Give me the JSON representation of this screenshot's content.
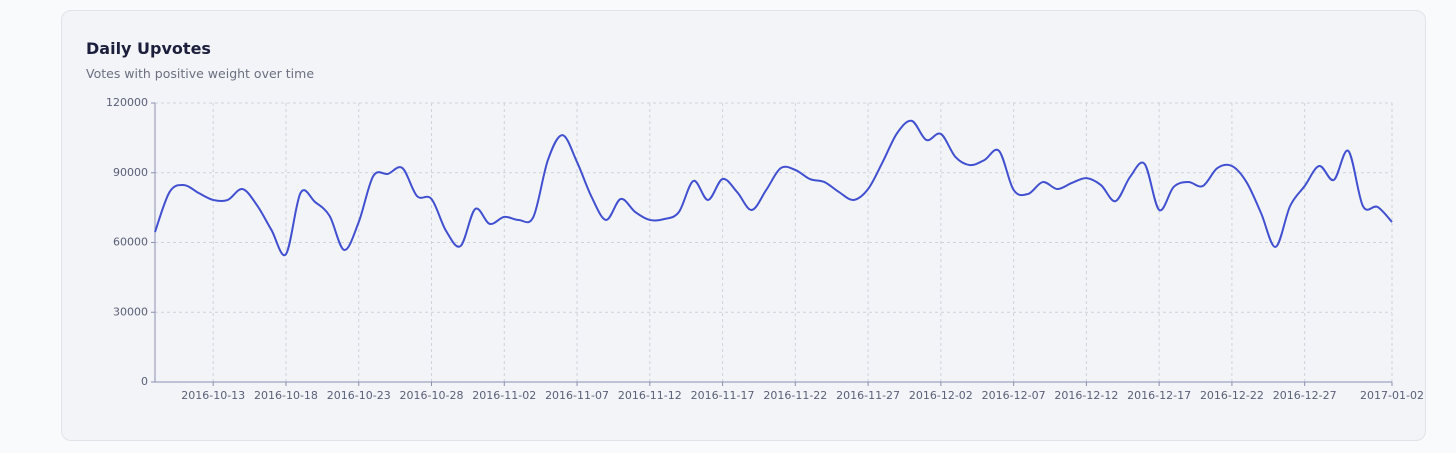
{
  "header": {
    "title": "Daily Upvotes",
    "subtitle": "Votes with positive weight over time"
  },
  "chart_data": {
    "type": "line",
    "grid": true,
    "x": [
      "2016-10-09",
      "2016-10-10",
      "2016-10-11",
      "2016-10-12",
      "2016-10-13",
      "2016-10-14",
      "2016-10-15",
      "2016-10-16",
      "2016-10-17",
      "2016-10-18",
      "2016-10-19",
      "2016-10-20",
      "2016-10-21",
      "2016-10-22",
      "2016-10-23",
      "2016-10-24",
      "2016-10-25",
      "2016-10-26",
      "2016-10-27",
      "2016-10-28",
      "2016-10-29",
      "2016-10-30",
      "2016-10-31",
      "2016-11-01",
      "2016-11-02",
      "2016-11-03",
      "2016-11-04",
      "2016-11-05",
      "2016-11-06",
      "2016-11-07",
      "2016-11-08",
      "2016-11-09",
      "2016-11-10",
      "2016-11-11",
      "2016-11-12",
      "2016-11-13",
      "2016-11-14",
      "2016-11-15",
      "2016-11-16",
      "2016-11-17",
      "2016-11-18",
      "2016-11-19",
      "2016-11-20",
      "2016-11-21",
      "2016-11-22",
      "2016-11-23",
      "2016-11-24",
      "2016-11-25",
      "2016-11-26",
      "2016-11-27",
      "2016-11-28",
      "2016-11-29",
      "2016-11-30",
      "2016-12-01",
      "2016-12-02",
      "2016-12-03",
      "2016-12-04",
      "2016-12-05",
      "2016-12-06",
      "2016-12-07",
      "2016-12-08",
      "2016-12-09",
      "2016-12-10",
      "2016-12-11",
      "2016-12-12",
      "2016-12-13",
      "2016-12-14",
      "2016-12-15",
      "2016-12-16",
      "2016-12-17",
      "2016-12-18",
      "2016-12-19",
      "2016-12-20",
      "2016-12-21",
      "2016-12-22",
      "2016-12-23",
      "2016-12-24",
      "2016-12-25",
      "2016-12-26",
      "2016-12-27",
      "2016-12-28",
      "2016-12-29",
      "2016-12-30",
      "2016-12-31",
      "2017-01-01",
      "2017-01-02"
    ],
    "series": [
      {
        "color": "#4150d0",
        "values": [
          64500,
          81700,
          84700,
          81300,
          78300,
          78300,
          83000,
          76100,
          65400,
          55000,
          81300,
          77400,
          71400,
          56800,
          68800,
          88600,
          89500,
          92000,
          80000,
          78700,
          65000,
          58500,
          74400,
          68000,
          71000,
          69700,
          71000,
          95500,
          106200,
          94600,
          79600,
          69700,
          78700,
          73100,
          69700,
          70100,
          73100,
          86500,
          78300,
          87300,
          81700,
          74000,
          82600,
          92000,
          91200,
          87300,
          86000,
          81700,
          78300,
          83000,
          94600,
          107100,
          112300,
          104100,
          106700,
          96800,
          93300,
          95500,
          99400,
          82600,
          80900,
          86000,
          83000,
          85600,
          87700,
          84700,
          77800,
          88200,
          93800,
          74000,
          83900,
          86000,
          84300,
          92000,
          92900,
          86000,
          72700,
          58100,
          75700,
          84300,
          92900,
          86900,
          99400,
          75700,
          75300,
          68800
        ]
      }
    ],
    "xticks": [
      "2016-10-13",
      "2016-10-18",
      "2016-10-23",
      "2016-10-28",
      "2016-11-02",
      "2016-11-07",
      "2016-11-12",
      "2016-11-17",
      "2016-11-22",
      "2016-11-27",
      "2016-12-02",
      "2016-12-07",
      "2016-12-12",
      "2016-12-17",
      "2016-12-22",
      "2016-12-27",
      "2017-01-02"
    ],
    "ylim": [
      0,
      120000
    ],
    "yticks": [
      0,
      30000,
      60000,
      90000,
      120000
    ]
  }
}
